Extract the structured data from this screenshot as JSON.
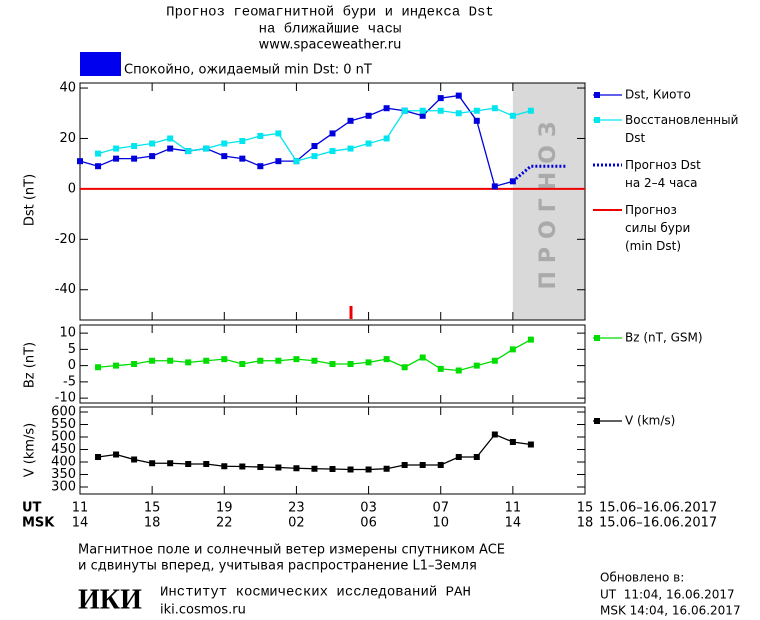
{
  "header": {
    "title_line1": "Прогноз геомагнитной бури и индекса Dst",
    "title_line2": "на ближайшие часы",
    "url": "www.spaceweather.ru"
  },
  "status": {
    "text": "Спокойно, ожидаемый min Dst: 0 nT",
    "color": "#0000ee"
  },
  "chart_data": [
    {
      "type": "line",
      "ylabel": "Dst (nT)",
      "x": [
        0,
        1,
        2,
        3,
        4,
        5,
        6,
        7,
        8,
        9,
        10,
        11,
        12,
        13,
        14,
        15,
        16,
        17,
        18,
        19,
        20,
        21,
        22,
        23,
        24,
        25,
        26,
        27
      ],
      "xlim": [
        0,
        28
      ],
      "xticks": [
        0,
        4,
        8,
        12,
        16,
        20,
        24,
        28
      ],
      "ylim": [
        -52,
        42
      ],
      "yticks": [
        -40,
        -20,
        0,
        20,
        40
      ],
      "forecast_region": {
        "start": 24,
        "end": 28,
        "label": "ПРОГНОЗ"
      },
      "series": [
        {
          "name": "Dst, Киото",
          "color": "#0000dd",
          "markers": true,
          "dotted": false,
          "values": [
            11,
            9,
            12,
            12,
            13,
            16,
            15,
            16,
            13,
            12,
            9,
            11,
            11,
            17,
            22,
            27,
            29,
            32,
            31,
            29,
            36,
            37,
            27,
            1,
            3,
            null,
            null,
            null
          ]
        },
        {
          "name": "Восстановленный\nDst",
          "color": "#00e5ee",
          "markers": true,
          "dotted": false,
          "values": [
            null,
            14,
            16,
            17,
            18,
            20,
            15,
            16,
            18,
            19,
            21,
            22,
            11,
            13,
            15,
            16,
            18,
            20,
            31,
            31,
            31,
            30,
            31,
            32,
            29,
            31,
            null,
            null
          ]
        },
        {
          "name": "Прогноз Dst\nна 2–4 часа",
          "color": "#0000dd",
          "markers": false,
          "dotted": true,
          "values": [
            null,
            null,
            null,
            null,
            null,
            null,
            null,
            null,
            null,
            null,
            null,
            null,
            null,
            null,
            null,
            null,
            null,
            null,
            null,
            null,
            null,
            null,
            null,
            null,
            3,
            9,
            9,
            9
          ]
        }
      ],
      "storm_forecast": {
        "name": "Прогноз\nсилы бури\n(min Dst)",
        "color": "#ee0000",
        "value": 0
      }
    },
    {
      "type": "line",
      "ylabel": "Bz (nT)",
      "x": [
        0,
        1,
        2,
        3,
        4,
        5,
        6,
        7,
        8,
        9,
        10,
        11,
        12,
        13,
        14,
        15,
        16,
        17,
        18,
        19,
        20,
        21,
        22,
        23,
        24,
        25
      ],
      "xlim": [
        0,
        28
      ],
      "xticks": [
        0,
        4,
        8,
        12,
        16,
        20,
        24,
        28
      ],
      "ylim": [
        -11.5,
        12.5
      ],
      "yticks": [
        -10,
        -5,
        0,
        5,
        10
      ],
      "series": [
        {
          "name": "Bz (nT, GSM)",
          "color": "#00dd00",
          "markers": true,
          "dotted": false,
          "values": [
            null,
            -0.5,
            0,
            0.5,
            1.5,
            1.5,
            1,
            1.5,
            2,
            0.5,
            1.5,
            1.5,
            2,
            1.5,
            0.5,
            0.5,
            1,
            2,
            -0.5,
            2.5,
            -1,
            -1.5,
            0,
            1.5,
            5,
            8
          ]
        }
      ]
    },
    {
      "type": "line",
      "ylabel": "V (km/s)",
      "x": [
        0,
        1,
        2,
        3,
        4,
        5,
        6,
        7,
        8,
        9,
        10,
        11,
        12,
        13,
        14,
        15,
        16,
        17,
        18,
        19,
        20,
        21,
        22,
        23,
        24,
        25
      ],
      "xlim": [
        0,
        28
      ],
      "xticks": [
        {
          "value": 0,
          "label": "11"
        },
        {
          "value": 4,
          "label": "15"
        },
        {
          "value": 8,
          "label": "19"
        },
        {
          "value": 12,
          "label": "23"
        },
        {
          "value": 16,
          "label": "03"
        },
        {
          "value": 20,
          "label": "07"
        },
        {
          "value": 24,
          "label": "11"
        },
        {
          "value": 28,
          "label": "15"
        }
      ],
      "msk_ticklabels": [
        "14",
        "18",
        "22",
        "02",
        "06",
        "10",
        "14",
        "18"
      ],
      "ut_label": "UT",
      "msk_label": "MSK",
      "ut_dates": "15.06–16.06.2017",
      "msk_dates": "15.06–16.06.2017",
      "ylim": [
        272,
        620
      ],
      "yticks": [
        300,
        350,
        400,
        450,
        500,
        550,
        600
      ],
      "series": [
        {
          "name": "V (km/s)",
          "color": "#000000",
          "markers": true,
          "dotted": false,
          "values": [
            null,
            420,
            430,
            410,
            395,
            395,
            392,
            392,
            383,
            382,
            380,
            378,
            375,
            373,
            372,
            370,
            370,
            373,
            388,
            388,
            388,
            420,
            420,
            510,
            480,
            470
          ]
        }
      ]
    }
  ],
  "footer": {
    "note_line1": "Магнитное поле и солнечный ветер измерены спутником ACE",
    "note_line2": "и сдвинуты вперед, учитывая распространение L1–Земля",
    "logo": "ИКИ",
    "institute": "Институт космических исследований РАН",
    "site": "iki.cosmos.ru",
    "updated": "Обновлено в:",
    "updated_ut": "UT  11:04, 16.06.2017",
    "updated_msk": "MSK 14:04, 16.06.2017"
  }
}
